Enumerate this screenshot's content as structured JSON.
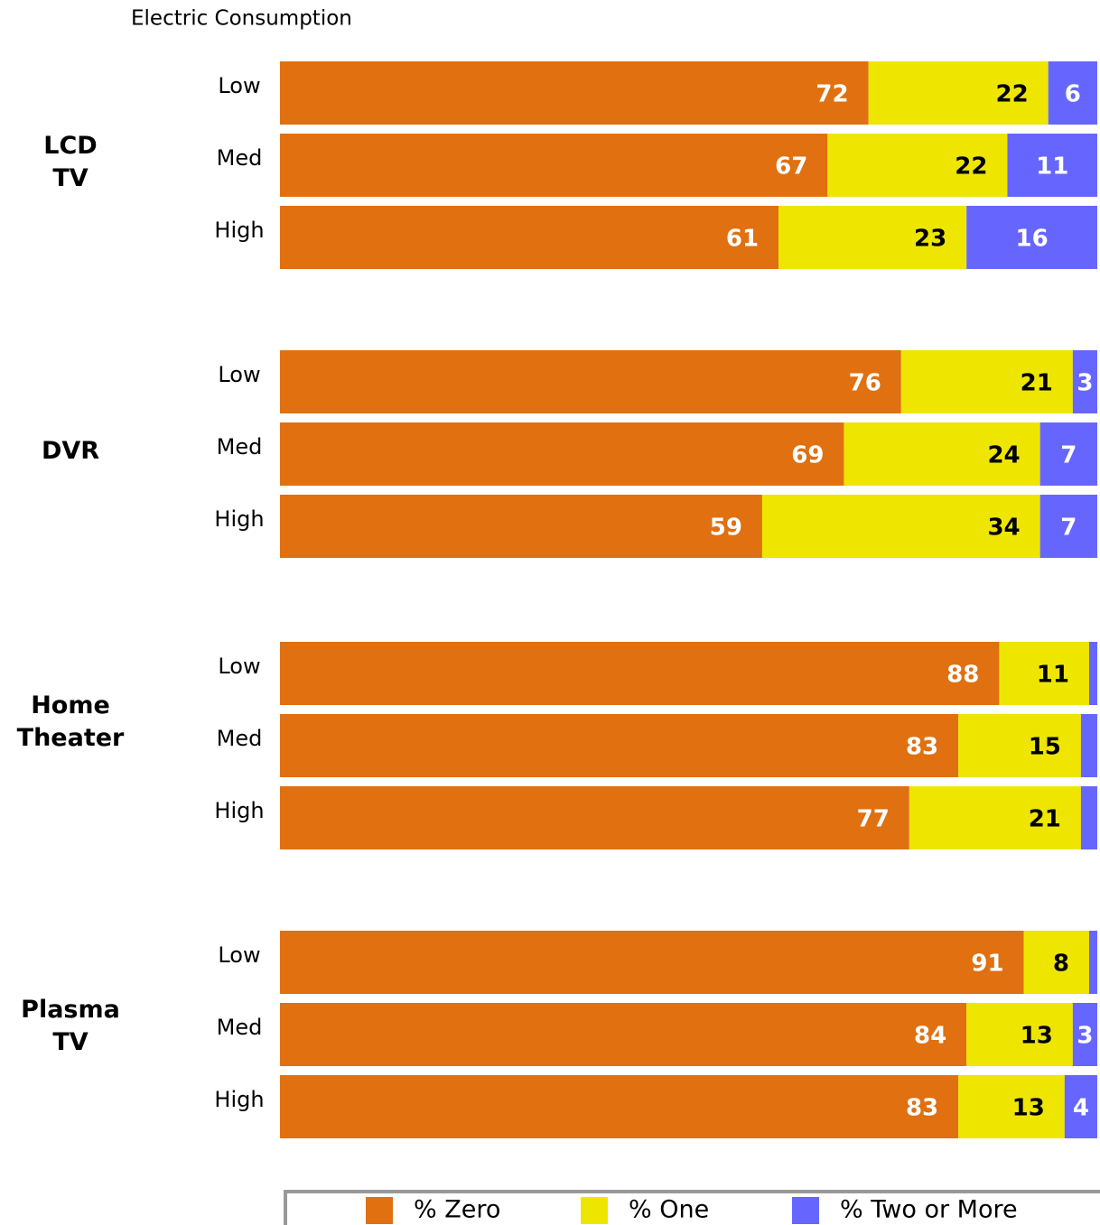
{
  "chart_data": {
    "type": "stacked-bar-horizontal",
    "title": "Electric Consumption",
    "groups": [
      "LCD TV",
      "DVR",
      "Home Theater",
      "Plasma TV"
    ],
    "categories": [
      "Low",
      "Med",
      "High",
      "Low",
      "Med",
      "High",
      "Low",
      "Med",
      "High",
      "Low",
      "Med",
      "High"
    ],
    "series": [
      {
        "name": "% Zero",
        "color": "#e07010",
        "label_color": "#ffffff",
        "values": [
          72,
          67,
          61,
          76,
          69,
          59,
          88,
          83,
          77,
          91,
          84,
          83
        ]
      },
      {
        "name": "% One",
        "color": "#eee600",
        "label_color": "#000000",
        "values": [
          22,
          22,
          23,
          21,
          24,
          34,
          11,
          15,
          21,
          8,
          13,
          13
        ]
      },
      {
        "name": "% Two or More",
        "color": "#6666ff",
        "label_color": "#ffffff",
        "values": [
          6,
          11,
          16,
          3,
          7,
          7,
          1,
          2,
          2,
          1,
          3,
          4
        ],
        "value_labels": [
          "6",
          "11",
          "16",
          "3",
          "7",
          "7",
          null,
          null,
          null,
          null,
          "3",
          "4"
        ]
      }
    ],
    "xlim": [
      0,
      100
    ]
  }
}
